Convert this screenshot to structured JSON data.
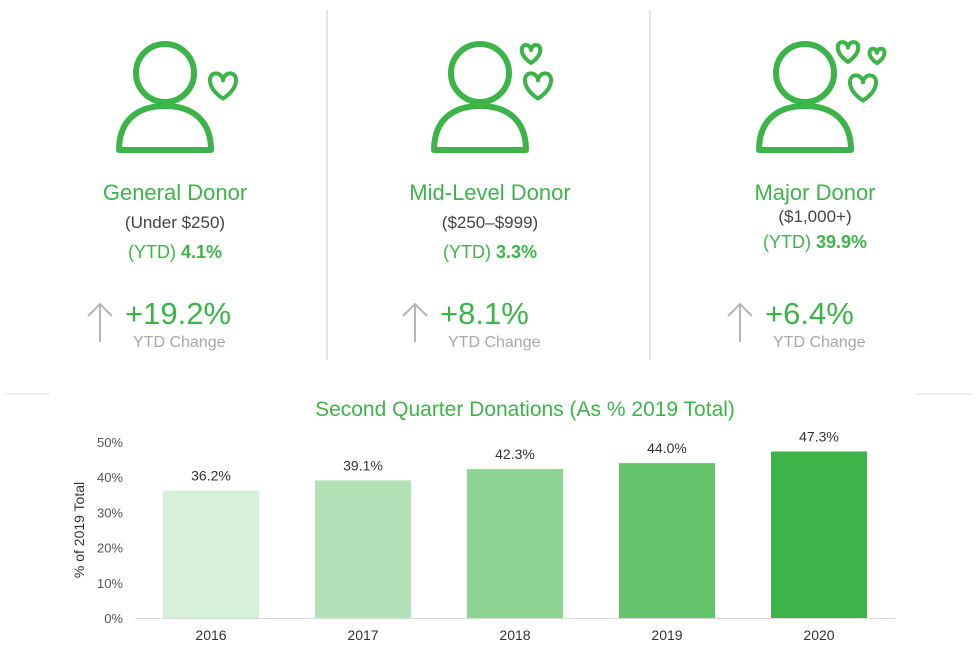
{
  "cards": [
    {
      "name": "General Donor",
      "range": "(Under $250)",
      "ytd_prefix": "(YTD)",
      "ytd_value": "4.1%",
      "change": "+19.2%",
      "change_label": "YTD Change",
      "hearts": 1
    },
    {
      "name": "Mid-Level Donor",
      "range": "($250–$999)",
      "ytd_prefix": "(YTD)",
      "ytd_value": "3.3%",
      "change": "+8.1%",
      "change_label": "YTD Change",
      "hearts": 2
    },
    {
      "name": "Major Donor",
      "range": "($1,000+)",
      "ytd_prefix": "(YTD)",
      "ytd_value": "39.9%",
      "change": "+6.4%",
      "change_label": "YTD Change",
      "hearts": 3
    }
  ],
  "colors": {
    "accent": "#3db44a",
    "muted_text": "#a8a8a8",
    "bar_colors": [
      "#d6efd8",
      "#b4e2b8",
      "#8dd492",
      "#64c46c",
      "#3db44a"
    ]
  },
  "icons": [
    "person-with-heart-icon",
    "arrow-up-icon"
  ],
  "chart_data": {
    "type": "bar",
    "title": "Second Quarter Donations (As % 2019 Total)",
    "categories": [
      "2016",
      "2017",
      "2018",
      "2019",
      "2020"
    ],
    "values": [
      36.2,
      39.1,
      42.3,
      44.0,
      47.3
    ],
    "value_labels": [
      "36.2%",
      "39.1%",
      "42.3%",
      "44.0%",
      "47.3%"
    ],
    "ylabel": "% of 2019 Total",
    "ylim": [
      0,
      50
    ],
    "yticks": [
      "0%",
      "10%",
      "20%",
      "30%",
      "40%",
      "50%"
    ],
    "grid": false
  }
}
